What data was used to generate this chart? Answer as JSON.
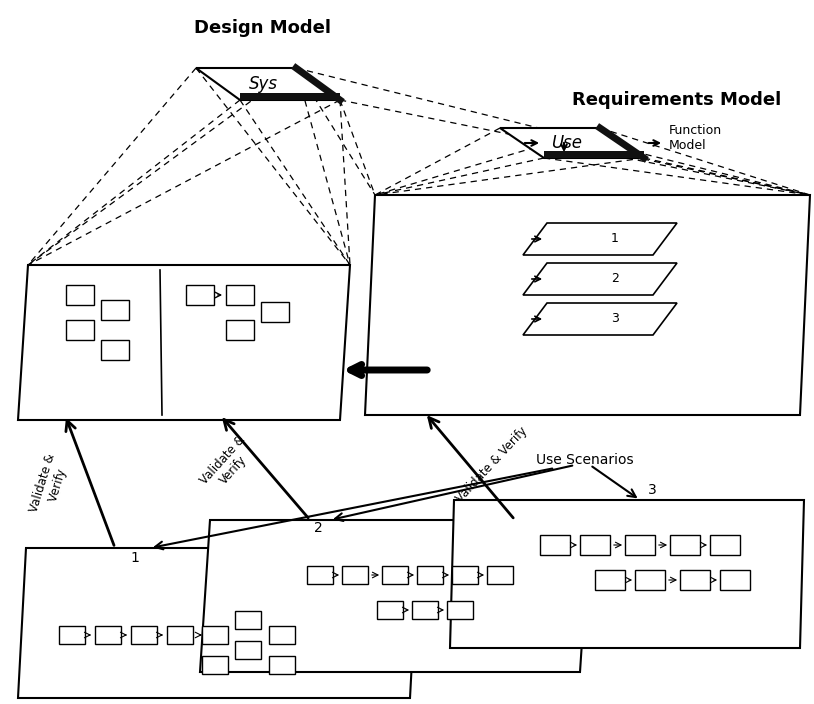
{
  "design_model_label": "Design Model",
  "requirements_model_label": "Requirements Model",
  "function_model_label": "Function\nModel",
  "sys_label": "Sys",
  "use_label": "Use",
  "use_scenarios_label": "Use Scenarios",
  "background_color": "#ffffff"
}
